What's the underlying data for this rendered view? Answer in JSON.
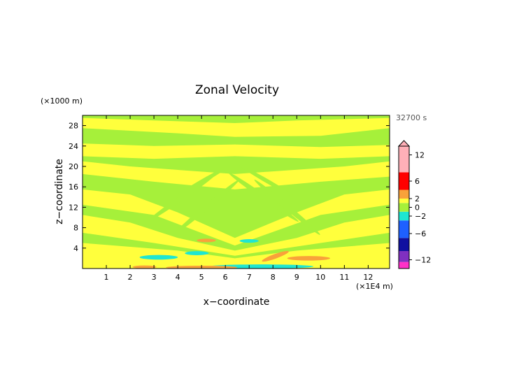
{
  "chart_data": {
    "type": "heatmap",
    "title": "Zonal Velocity",
    "xlabel": "x−coordinate",
    "ylabel": "z−coordinate",
    "x_unit": "(×1E4 m)",
    "y_unit": "(×1000 m)",
    "time_label": "32700 s",
    "x_ticks": [
      "1",
      "2",
      "3",
      "4",
      "5",
      "6",
      "7",
      "8",
      "9",
      "10",
      "11",
      "12"
    ],
    "y_ticks": [
      "4",
      "8",
      "12",
      "16",
      "20",
      "24",
      "28"
    ],
    "xlim": [
      0,
      12.9
    ],
    "ylim": [
      0,
      30
    ],
    "colorbar": {
      "tick_labels": [
        "12",
        "6",
        "2",
        "0",
        "−2",
        "−6",
        "−12"
      ],
      "tick_values": [
        12,
        6,
        2,
        0,
        -2,
        -6,
        -12
      ],
      "range": [
        -14,
        14
      ],
      "colors": {
        "pink_light": "#ffb0b8",
        "red": "#ff0000",
        "orange": "#f9a23a",
        "yellow": "#ffff3c",
        "green": "#a6f03a",
        "cyan": "#1ee6d2",
        "blue": "#1e60ff",
        "navy": "#1010a0",
        "purple": "#8030c0",
        "magenta": "#ff30c8"
      }
    },
    "field_colors": {
      "yellow": "#ffff3c",
      "green": "#a6f03a",
      "orange": "#f9a23a",
      "cyan": "#1ee6d2"
    }
  }
}
